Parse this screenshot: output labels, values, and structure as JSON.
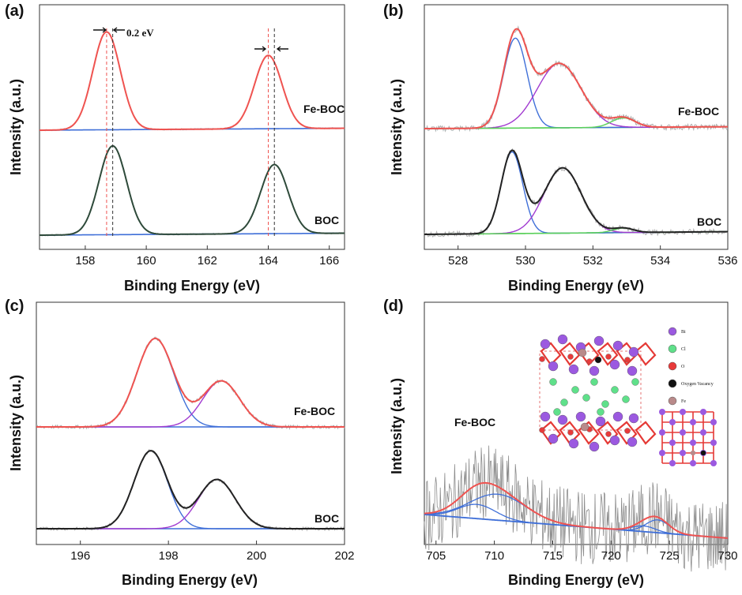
{
  "chart_data": [
    {
      "panel": "(a)",
      "type": "line",
      "xlabel": "Binding Energy (eV)",
      "ylabel": "Intensity (a.u.)",
      "xlim": [
        156.5,
        166.5
      ],
      "x_ticks": [
        158,
        160,
        162,
        164,
        166
      ],
      "annotation": "0.2 eV",
      "colors": {
        "Fe-BOC": "#ef5350",
        "BOC": "#2e4a3a",
        "background": "#3f6fd8",
        "raw": "#b0b0b0"
      },
      "series": [
        {
          "name": "Fe-BOC",
          "peaks": [
            {
              "center": 158.7,
              "height": 1.0,
              "width": 0.45
            },
            {
              "center": 164.0,
              "height": 0.75,
              "width": 0.45
            }
          ]
        },
        {
          "name": "BOC",
          "peaks": [
            {
              "center": 158.9,
              "height": 0.9,
              "width": 0.45
            },
            {
              "center": 164.2,
              "height": 0.7,
              "width": 0.45
            }
          ]
        }
      ]
    },
    {
      "panel": "(b)",
      "type": "line",
      "xlabel": "Binding Energy (eV)",
      "ylabel": "Intensity (a.u.)",
      "xlim": [
        527,
        536
      ],
      "x_ticks": [
        528,
        530,
        532,
        534,
        536
      ],
      "colors": {
        "envelope": "#ef5350",
        "lattice": "#3f6fd8",
        "vacancy": "#a13ad0",
        "adsorbed": "#5ad05a",
        "raw": "#b0b0b0"
      },
      "series": [
        {
          "name": "Fe-BOC",
          "peaks": [
            {
              "center": 529.7,
              "height": 0.95,
              "width": 0.35
            },
            {
              "center": 531.0,
              "height": 0.68,
              "width": 0.65
            },
            {
              "center": 532.9,
              "height": 0.1,
              "width": 0.35
            }
          ]
        },
        {
          "name": "BOC",
          "peaks": [
            {
              "center": 529.6,
              "height": 0.9,
              "width": 0.32
            },
            {
              "center": 531.1,
              "height": 0.72,
              "width": 0.55
            },
            {
              "center": 532.9,
              "height": 0.05,
              "width": 0.3
            }
          ]
        }
      ]
    },
    {
      "panel": "(c)",
      "type": "line",
      "xlabel": "Binding Energy (eV)",
      "ylabel": "Intensity (a.u.)",
      "xlim": [
        195,
        202
      ],
      "x_ticks": [
        196,
        198,
        200,
        202
      ],
      "colors": {
        "envelope": "#ef5350",
        "peak1": "#3f6fd8",
        "peak2": "#a13ad0",
        "raw": "#b0b0b0"
      },
      "series": [
        {
          "name": "Fe-BOC",
          "peaks": [
            {
              "center": 197.7,
              "height": 1.0,
              "width": 0.42
            },
            {
              "center": 199.2,
              "height": 0.52,
              "width": 0.42
            }
          ]
        },
        {
          "name": "BOC",
          "peaks": [
            {
              "center": 197.6,
              "height": 0.95,
              "width": 0.38
            },
            {
              "center": 199.1,
              "height": 0.6,
              "width": 0.42
            }
          ]
        }
      ]
    },
    {
      "panel": "(d)",
      "type": "line",
      "xlabel": "Binding Energy (eV)",
      "ylabel": "Intensity (a.u.)",
      "xlim": [
        704,
        730
      ],
      "x_ticks": [
        705,
        710,
        715,
        720,
        725,
        730
      ],
      "colors": {
        "envelope": "#ef5350",
        "fit": "#3f6fd8",
        "background": "#3f6fd8",
        "raw": "#8c8c8c"
      },
      "series": [
        {
          "name": "Fe-BOC",
          "peaks": [
            {
              "center": 708.5,
              "height": 0.3,
              "width": 1.6
            },
            {
              "center": 710.3,
              "height": 0.55,
              "width": 2.4
            },
            {
              "center": 722.8,
              "height": 0.12,
              "width": 1.0
            },
            {
              "center": 724.0,
              "height": 0.27,
              "width": 1.0
            }
          ]
        }
      ],
      "inset_legend": [
        {
          "label": "Bi",
          "color": "#9b59e0"
        },
        {
          "label": "Cl",
          "color": "#5fe08a"
        },
        {
          "label": "O",
          "color": "#e83a3a"
        },
        {
          "label": "Oxygen Vacancy",
          "color": "#111111"
        },
        {
          "label": "Fe",
          "color": "#b98a8a"
        }
      ]
    }
  ]
}
